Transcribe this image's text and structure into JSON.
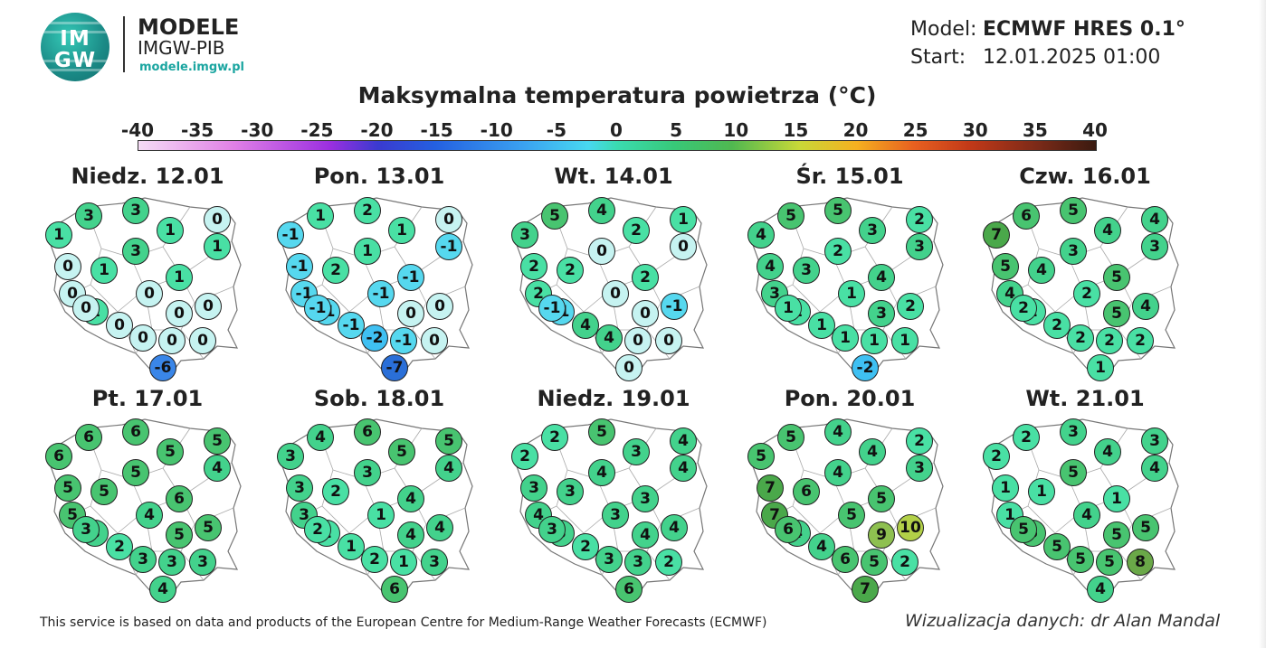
{
  "brand": {
    "logo_top": "IM",
    "logo_bottom": "GW",
    "name": "MODELE",
    "org": "IMGW-PIB",
    "url": "modele.imgw.pl"
  },
  "info": {
    "model_label": "Model:",
    "model_value": "ECMWF HRES 0.1°",
    "start_label": "Start:",
    "start_value": "12.01.2025 01:00"
  },
  "title": "Maksymalna temperatura powietrza (°C)",
  "colorbar_ticks": [
    "-40",
    "-35",
    "-30",
    "-25",
    "-20",
    "-15",
    "-10",
    "-5",
    "0",
    "5",
    "10",
    "15",
    "20",
    "25",
    "30",
    "35",
    "40"
  ],
  "days": [
    {
      "label": "Niedz. 12.01",
      "values": [
        1,
        3,
        3,
        1,
        0,
        1,
        0,
        1,
        1,
        3,
        0,
        0,
        1,
        0,
        0,
        0,
        0,
        0,
        0,
        0,
        -6
      ]
    },
    {
      "label": "Pon. 13.01",
      "values": [
        -1,
        1,
        2,
        1,
        0,
        -1,
        -1,
        2,
        -1,
        1,
        -1,
        -1,
        -1,
        0,
        0,
        -1,
        -2,
        -1,
        0,
        -1,
        -7
      ]
    },
    {
      "label": "Wt. 14.01",
      "values": [
        3,
        5,
        4,
        2,
        1,
        0,
        2,
        2,
        2,
        0,
        2,
        0,
        -1,
        0,
        -1,
        4,
        4,
        0,
        0,
        -1,
        0
      ]
    },
    {
      "label": "Śr. 15.01",
      "values": [
        4,
        5,
        5,
        3,
        2,
        3,
        4,
        3,
        4,
        2,
        3,
        1,
        1,
        3,
        2,
        1,
        1,
        1,
        1,
        1,
        -2
      ]
    },
    {
      "label": "Czw. 16.01",
      "values": [
        7,
        6,
        5,
        4,
        4,
        3,
        5,
        4,
        5,
        3,
        4,
        2,
        2,
        5,
        4,
        2,
        2,
        2,
        2,
        2,
        1
      ]
    },
    {
      "label": "Pt. 17.01",
      "values": [
        6,
        6,
        6,
        5,
        5,
        4,
        5,
        5,
        6,
        5,
        5,
        4,
        3,
        5,
        5,
        2,
        3,
        3,
        3,
        3,
        4
      ]
    },
    {
      "label": "Sob. 18.01",
      "values": [
        3,
        4,
        6,
        5,
        5,
        4,
        3,
        2,
        4,
        3,
        3,
        1,
        2,
        4,
        4,
        1,
        2,
        1,
        3,
        2,
        6
      ]
    },
    {
      "label": "Niedz. 19.01",
      "values": [
        2,
        2,
        5,
        3,
        4,
        4,
        3,
        3,
        3,
        4,
        4,
        3,
        3,
        4,
        4,
        2,
        3,
        3,
        2,
        3,
        6
      ]
    },
    {
      "label": "Pon. 20.01",
      "values": [
        5,
        5,
        4,
        4,
        2,
        3,
        7,
        6,
        5,
        4,
        7,
        5,
        4,
        9,
        10,
        4,
        6,
        5,
        2,
        6,
        7
      ]
    },
    {
      "label": "Wt. 21.01",
      "values": [
        2,
        2,
        3,
        4,
        3,
        4,
        1,
        1,
        1,
        5,
        1,
        4,
        6,
        5,
        5,
        5,
        5,
        5,
        8,
        5,
        4
      ]
    }
  ],
  "footer_left": "This service is based on data and products of the European Centre for Medium-Range Weather Forecasts (ECMWF)",
  "footer_right": "Wizualizacja danych: dr Alan Mandal"
}
